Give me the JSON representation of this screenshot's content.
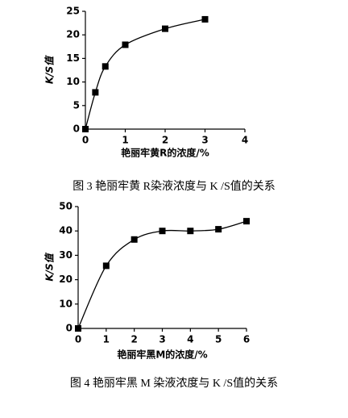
{
  "chart_data": [
    {
      "type": "line",
      "title": "图 3  艳丽牢黄 R染液浓度与 K /S值的关系",
      "x_label": "艳丽牢黄R的浓度/%",
      "y_label": "K/S值",
      "x": [
        0,
        0.25,
        0.5,
        1,
        2,
        3
      ],
      "values": [
        0,
        7.8,
        13.3,
        17.9,
        21.3,
        23.3
      ],
      "color": "#000000",
      "xlim": [
        0,
        4
      ],
      "xticks": [
        0,
        1,
        2,
        3,
        4
      ],
      "ylim": [
        0,
        25
      ],
      "yticks": [
        0,
        5,
        10,
        15,
        20,
        25
      ]
    },
    {
      "type": "line",
      "title": "图 4  艳丽牢黑 M 染液浓度与 K /S值的关系",
      "x_label": "艳丽牢黑M的浓度/%",
      "y_label": "K/S值",
      "x": [
        0,
        1,
        2,
        3,
        4,
        5,
        6
      ],
      "values": [
        0,
        25.7,
        36.5,
        40,
        40,
        40.7,
        44
      ],
      "color": "#000000",
      "xlim": [
        0,
        6
      ],
      "xticks": [
        0,
        1,
        2,
        3,
        4,
        5,
        6
      ],
      "ylim": [
        0,
        50
      ],
      "yticks": [
        0,
        10,
        20,
        30,
        40,
        50
      ]
    }
  ]
}
